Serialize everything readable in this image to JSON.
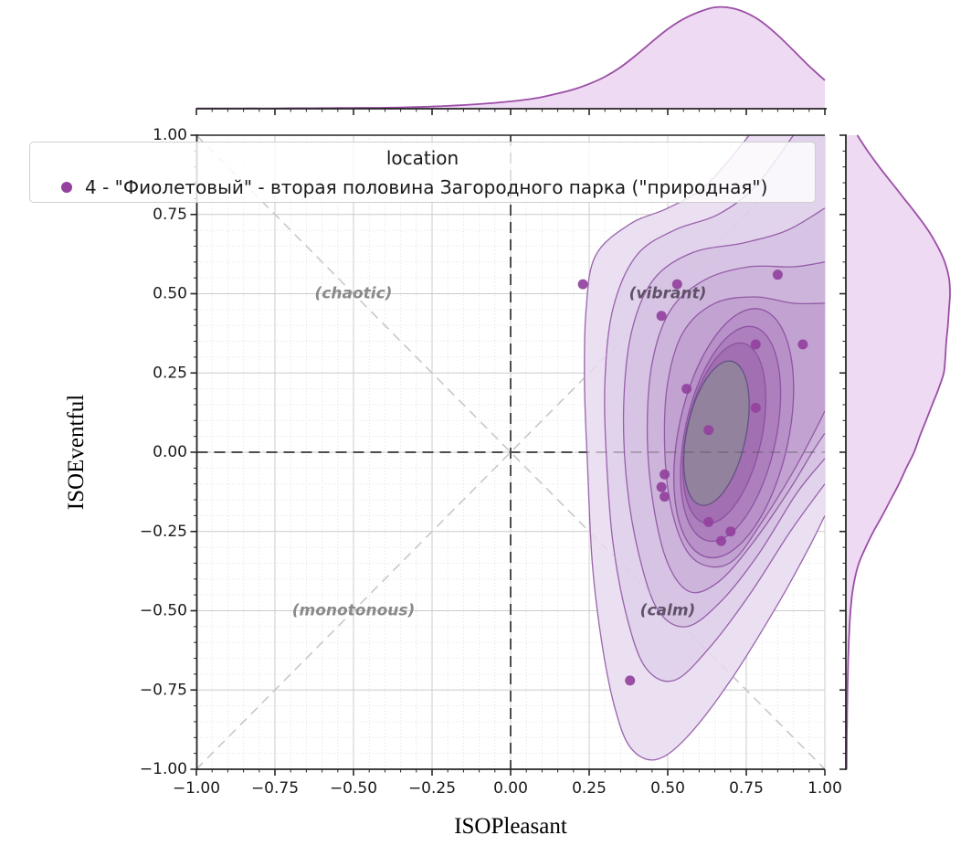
{
  "legend": {
    "title": "location",
    "entries": [
      {
        "label": "4 - \"Фиолетовый\" - вторая половина Загородного парка (\"природная\")",
        "marker": "dot",
        "color": "#93419d"
      }
    ]
  },
  "axes": {
    "xlabel": "ISOPleasant",
    "ylabel": "ISOEventful"
  },
  "chart_data": {
    "type": "scatter",
    "subtype": "joint-kde-density-with-marginals",
    "title": "",
    "xlabel": "ISOPleasant",
    "ylabel": "ISOEventful",
    "xlim": [
      -1,
      1
    ],
    "ylim": [
      -1,
      1
    ],
    "xticks": [
      -1,
      -0.75,
      -0.5,
      -0.25,
      0,
      0.25,
      0.5,
      0.75,
      1
    ],
    "yticks": [
      -1,
      -0.75,
      -0.5,
      -0.25,
      0,
      0.25,
      0.5,
      0.75,
      1
    ],
    "xtick_labels": [
      "−1.00",
      "−0.75",
      "−0.50",
      "−0.25",
      "0.00",
      "0.25",
      "0.50",
      "0.75",
      "1.00"
    ],
    "ytick_labels": [
      "−1.00",
      "−0.75",
      "−0.50",
      "−0.25",
      "0.00",
      "0.25",
      "0.50",
      "0.75",
      "1.00"
    ],
    "minor_tick_step": 0.05,
    "grid": "major-solid + minor-dotted",
    "legend_position": "upper left",
    "quadrant_labels": [
      {
        "text": "(chaotic)",
        "x": -0.5,
        "y": 0.5,
        "color": "#8a8a8a"
      },
      {
        "text": "(vibrant)",
        "x": 0.5,
        "y": 0.5,
        "color": "#5e5168"
      },
      {
        "text": "(monotonous)",
        "x": -0.5,
        "y": -0.5,
        "color": "#8a8a8a"
      },
      {
        "text": "(calm)",
        "x": 0.5,
        "y": -0.5,
        "color": "#5e5168"
      }
    ],
    "series": [
      {
        "name": "4 - \"Фиолетовый\" - вторая половина Загородного парка (\"природная\")",
        "color": "#93419d",
        "points": [
          [
            0.23,
            0.53
          ],
          [
            0.53,
            0.53
          ],
          [
            0.85,
            0.56
          ],
          [
            0.48,
            0.43
          ],
          [
            0.78,
            0.34
          ],
          [
            0.93,
            0.34
          ],
          [
            0.56,
            0.2
          ],
          [
            0.78,
            0.14
          ],
          [
            0.63,
            0.07
          ],
          [
            0.49,
            -0.07
          ],
          [
            0.48,
            -0.11
          ],
          [
            0.49,
            -0.14
          ],
          [
            0.63,
            -0.22
          ],
          [
            0.7,
            -0.25
          ],
          [
            0.67,
            -0.28
          ],
          [
            0.38,
            -0.72
          ]
        ]
      }
    ],
    "kde_contour_stroke": "#8a4c9e",
    "kde_levels": [
      {
        "type": "path",
        "fill": "#ebdff2",
        "verts": [
          [
            0.76,
            1.0
          ],
          [
            0.62,
            0.84
          ],
          [
            0.5,
            0.77
          ],
          [
            0.38,
            0.72
          ],
          [
            0.27,
            0.62
          ],
          [
            0.24,
            0.45
          ],
          [
            0.235,
            0.22
          ],
          [
            0.245,
            -0.05
          ],
          [
            0.26,
            -0.35
          ],
          [
            0.29,
            -0.6
          ],
          [
            0.33,
            -0.8
          ],
          [
            0.38,
            -0.93
          ],
          [
            0.46,
            -0.97
          ],
          [
            0.56,
            -0.9
          ],
          [
            0.7,
            -0.72
          ],
          [
            0.85,
            -0.48
          ],
          [
            0.95,
            -0.3
          ],
          [
            1.0,
            -0.2
          ]
        ]
      },
      {
        "type": "path",
        "fill": "#e1d3ec",
        "verts": [
          [
            0.9,
            1.0
          ],
          [
            0.78,
            0.84
          ],
          [
            0.66,
            0.75
          ],
          [
            0.52,
            0.7
          ],
          [
            0.4,
            0.62
          ],
          [
            0.325,
            0.45
          ],
          [
            0.3,
            0.22
          ],
          [
            0.305,
            -0.02
          ],
          [
            0.325,
            -0.28
          ],
          [
            0.37,
            -0.52
          ],
          [
            0.43,
            -0.68
          ],
          [
            0.52,
            -0.72
          ],
          [
            0.63,
            -0.62
          ],
          [
            0.76,
            -0.45
          ],
          [
            0.89,
            -0.25
          ],
          [
            1.0,
            -0.1
          ]
        ]
      },
      {
        "type": "path",
        "fill": "#d7c4e4",
        "verts": [
          [
            1.0,
            0.77
          ],
          [
            0.88,
            0.7
          ],
          [
            0.74,
            0.66
          ],
          [
            0.58,
            0.63
          ],
          [
            0.455,
            0.545
          ],
          [
            0.385,
            0.38
          ],
          [
            0.36,
            0.15
          ],
          [
            0.37,
            -0.1
          ],
          [
            0.41,
            -0.33
          ],
          [
            0.47,
            -0.5
          ],
          [
            0.56,
            -0.55
          ],
          [
            0.67,
            -0.47
          ],
          [
            0.79,
            -0.32
          ],
          [
            0.91,
            -0.13
          ],
          [
            1.0,
            -0.02
          ]
        ]
      },
      {
        "type": "path",
        "fill": "#cdb4db",
        "verts": [
          [
            1.0,
            0.6
          ],
          [
            0.9,
            0.585
          ],
          [
            0.76,
            0.585
          ],
          [
            0.62,
            0.545
          ],
          [
            0.51,
            0.45
          ],
          [
            0.45,
            0.28
          ],
          [
            0.435,
            0.05
          ],
          [
            0.455,
            -0.17
          ],
          [
            0.5,
            -0.35
          ],
          [
            0.57,
            -0.44
          ],
          [
            0.66,
            -0.41
          ],
          [
            0.76,
            -0.3
          ],
          [
            0.88,
            -0.13
          ],
          [
            0.96,
            0.0
          ],
          [
            1.0,
            0.06
          ]
        ]
      },
      {
        "type": "path",
        "fill": "#c2a2d1",
        "verts": [
          [
            1.0,
            0.47
          ],
          [
            0.9,
            0.47
          ],
          [
            0.78,
            0.49
          ],
          [
            0.65,
            0.47
          ],
          [
            0.55,
            0.38
          ],
          [
            0.5,
            0.22
          ],
          [
            0.49,
            0.02
          ],
          [
            0.51,
            -0.17
          ],
          [
            0.56,
            -0.31
          ],
          [
            0.63,
            -0.36
          ],
          [
            0.71,
            -0.34
          ],
          [
            0.8,
            -0.22
          ],
          [
            0.9,
            -0.06
          ],
          [
            0.97,
            0.07
          ],
          [
            1.0,
            0.13
          ]
        ]
      },
      {
        "type": "ellipse",
        "fill": "#b791c7",
        "cx": 0.71,
        "cy": 0.06,
        "rx": 0.175,
        "ry": 0.4,
        "rot": 12
      },
      {
        "type": "ellipse",
        "fill": "#ad80bd",
        "cx": 0.7,
        "cy": 0.058,
        "rx": 0.145,
        "ry": 0.345,
        "rot": 12
      },
      {
        "type": "ellipse",
        "fill": "#a26fb2",
        "cx": 0.68,
        "cy": 0.06,
        "rx": 0.12,
        "ry": 0.29,
        "rot": 12
      },
      {
        "type": "ellipse",
        "fill": "#93829e",
        "cx": 0.655,
        "cy": 0.06,
        "rx": 0.094,
        "ry": 0.232,
        "rot": 12,
        "stroke": "#5c4f7e"
      }
    ],
    "marginal_top": {
      "x": [
        -1,
        -0.95,
        -0.9,
        -0.85,
        -0.8,
        -0.75,
        -0.7,
        -0.65,
        -0.6,
        -0.55,
        -0.5,
        -0.45,
        -0.4,
        -0.35,
        -0.3,
        -0.25,
        -0.2,
        -0.15,
        -0.1,
        -0.05,
        0,
        0.05,
        0.1,
        0.15,
        0.2,
        0.25,
        0.3,
        0.35,
        0.4,
        0.45,
        0.5,
        0.55,
        0.6,
        0.65,
        0.7,
        0.75,
        0.8,
        0.85,
        0.9,
        0.95,
        1
      ],
      "density": [
        0.003,
        0.003,
        0.003,
        0.004,
        0.004,
        0.004,
        0.005,
        0.005,
        0.006,
        0.007,
        0.008,
        0.009,
        0.01,
        0.013,
        0.017,
        0.022,
        0.028,
        0.036,
        0.046,
        0.058,
        0.072,
        0.09,
        0.115,
        0.15,
        0.19,
        0.245,
        0.315,
        0.41,
        0.53,
        0.66,
        0.785,
        0.885,
        0.955,
        1.0,
        0.995,
        0.945,
        0.855,
        0.725,
        0.575,
        0.42,
        0.28
      ],
      "fill": "#eedaf2",
      "stroke": "#9b4ea6"
    },
    "marginal_right": {
      "y": [
        1,
        0.95,
        0.9,
        0.85,
        0.8,
        0.75,
        0.7,
        0.65,
        0.6,
        0.55,
        0.5,
        0.45,
        0.4,
        0.35,
        0.3,
        0.25,
        0.2,
        0.15,
        0.1,
        0.05,
        0,
        -0.05,
        -0.1,
        -0.15,
        -0.2,
        -0.25,
        -0.3,
        -0.35,
        -0.4,
        -0.45,
        -0.5,
        -0.55,
        -0.6,
        -0.65,
        -0.7,
        -0.75,
        -0.8,
        -0.85,
        -0.9,
        -0.95,
        -1
      ],
      "density": [
        0.11,
        0.21,
        0.32,
        0.44,
        0.56,
        0.68,
        0.79,
        0.88,
        0.95,
        0.99,
        1.0,
        0.99,
        0.98,
        0.965,
        0.955,
        0.94,
        0.89,
        0.83,
        0.77,
        0.71,
        0.655,
        0.58,
        0.51,
        0.43,
        0.35,
        0.265,
        0.19,
        0.125,
        0.085,
        0.06,
        0.045,
        0.035,
        0.028,
        0.023,
        0.019,
        0.016,
        0.013,
        0.011,
        0.009,
        0.008,
        0.007
      ],
      "fill": "#eedaf2",
      "stroke": "#9b4ea6"
    },
    "colors": {
      "scatter": "#93419d",
      "grid_major": "#cccccc",
      "grid_minor": "#e0e0e0",
      "diagonal_dashed": "#c9c9c9",
      "zero_dashed": "#4d4d4d",
      "spine": "#262626",
      "tick_label": "#1c1c1c"
    }
  }
}
